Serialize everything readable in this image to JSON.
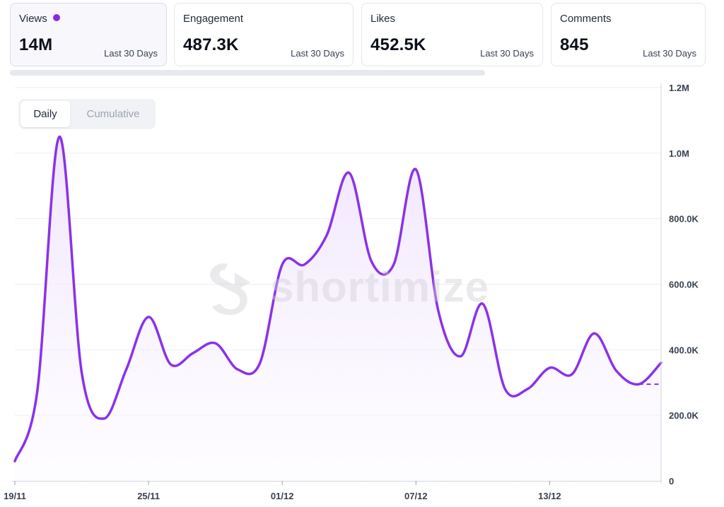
{
  "cards": [
    {
      "label": "Views",
      "value": "14M",
      "sub": "Last 30 Days",
      "selected": true
    },
    {
      "label": "Engagement",
      "value": "487.3K",
      "sub": "Last 30 Days",
      "selected": false
    },
    {
      "label": "Likes",
      "value": "452.5K",
      "sub": "Last 30 Days",
      "selected": false
    },
    {
      "label": "Comments",
      "value": "845",
      "sub": "Last 30 Days",
      "selected": false
    }
  ],
  "toggle": {
    "daily": "Daily",
    "cumulative": "Cumulative",
    "active": "Daily"
  },
  "watermark": {
    "text": "shortimize"
  },
  "colors": {
    "accent": "#8a2be2",
    "line": "#8b31e8",
    "fill": "#f5effd",
    "grid": "#eceef2",
    "axis": "#374151"
  },
  "chart_data": {
    "type": "area",
    "title": "",
    "xlabel": "",
    "ylabel": "",
    "ylim": [
      0,
      1200000
    ],
    "y_ticks": [
      0,
      200000,
      400000,
      600000,
      800000,
      1000000,
      1200000
    ],
    "y_tick_labels": [
      "0",
      "200.0K",
      "400.0K",
      "600.0K",
      "800.0K",
      "1.0M",
      "1.2M"
    ],
    "x_tick_labels": [
      "19/11",
      "25/11",
      "01/12",
      "07/12",
      "13/12"
    ],
    "x_tick_indices": [
      0,
      6,
      12,
      18,
      24
    ],
    "grid": true,
    "series": [
      {
        "values": [
          60000,
          270000,
          1050000,
          330000,
          190000,
          340000,
          500000,
          355000,
          390000,
          420000,
          340000,
          360000,
          660000,
          660000,
          750000,
          940000,
          670000,
          660000,
          950000,
          520000,
          380000,
          540000,
          280000,
          280000,
          345000,
          325000,
          450000,
          335000,
          295000,
          360000
        ]
      }
    ],
    "projected": {
      "from_index": 28,
      "value": 295000
    }
  }
}
